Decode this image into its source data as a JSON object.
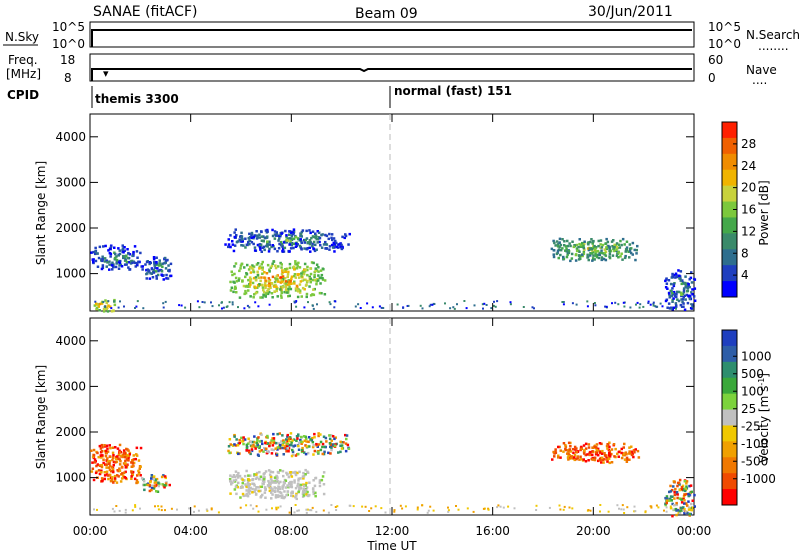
{
  "header": {
    "station": "SANAE (fitACF)",
    "beam": "Beam 09",
    "date": "30/Jun/2011"
  },
  "status_panels": {
    "nsky_label": "N.Sky",
    "nsearch_label": "N.Search",
    "nsearch_dots": "........",
    "counts_top": "10^5",
    "counts_bottom": "10^0",
    "freq_label_1": "Freq.",
    "freq_label_2": "[MHz]",
    "freq_top": "18",
    "freq_bottom": "8",
    "nave_label": "Nave",
    "nave_dots": "....",
    "nave_top": "60",
    "nave_bottom": "0",
    "cpid_label": "CPID",
    "cpid_1": "themis 3300",
    "cpid_2": "normal (fast) 151"
  },
  "chart_data": [
    {
      "type": "heatmap",
      "name": "power",
      "ylabel": "Slant Range [km]",
      "xlabel": "Time UT",
      "xticks": [
        "00:00",
        "04:00",
        "08:00",
        "12:00",
        "16:00",
        "20:00",
        "00:00"
      ],
      "yticks": [
        "1000",
        "2000",
        "3000",
        "4000"
      ],
      "xlim_hours": [
        0,
        24
      ],
      "ylim_km": [
        180,
        4500
      ],
      "colorbar": {
        "label": "Power [dB]",
        "ticks": [
          "4",
          "8",
          "12",
          "16",
          "20",
          "24",
          "28"
        ],
        "colors": [
          "#0000ff",
          "#1f3fbf",
          "#2e6e8e",
          "#3a8a6a",
          "#44a84a",
          "#7cc83c",
          "#c8d23c",
          "#f0b400",
          "#f08c00",
          "#f06000",
          "#ff2000"
        ]
      },
      "echo_regions": [
        {
          "t": [
            0.0,
            1.0
          ],
          "r": [
            180,
            450
          ],
          "intensity": "high"
        },
        {
          "t": [
            0.0,
            2.0
          ],
          "r": [
            1100,
            1650
          ],
          "intensity": "low"
        },
        {
          "t": [
            2.0,
            3.2
          ],
          "r": [
            900,
            1400
          ],
          "intensity": "low"
        },
        {
          "t": [
            5.5,
            9.3
          ],
          "r": [
            500,
            1300
          ],
          "intensity": "high"
        },
        {
          "t": [
            5.3,
            10.3
          ],
          "r": [
            1500,
            2000
          ],
          "intensity": "low"
        },
        {
          "t": [
            18.3,
            21.8
          ],
          "r": [
            1300,
            1800
          ],
          "intensity": "medium"
        },
        {
          "t": [
            22.8,
            24.0
          ],
          "r": [
            180,
            1100
          ],
          "intensity": "low"
        }
      ]
    },
    {
      "type": "heatmap",
      "name": "velocity",
      "ylabel": "Slant Range [km]",
      "xlabel": "Time UT",
      "xticks": [
        "00:00",
        "04:00",
        "08:00",
        "12:00",
        "16:00",
        "20:00",
        "00:00"
      ],
      "yticks": [
        "1000",
        "2000",
        "3000",
        "4000"
      ],
      "xlim_hours": [
        0,
        24
      ],
      "ylim_km": [
        180,
        4500
      ],
      "colorbar": {
        "label": "Velocity [m s-1]",
        "label_main": "Velocity [m s",
        "label_sup": "-1",
        "label_end": "]",
        "ticks": [
          "1000",
          "500",
          "100",
          "25",
          "-25",
          "-100",
          "-500",
          "-1000"
        ],
        "colors": [
          "#1f3fbf",
          "#2e5ea8",
          "#2e8e6e",
          "#3aa83a",
          "#7cd23c",
          "#c0c0c0",
          "#f0c800",
          "#f0a000",
          "#f07800",
          "#f04a00",
          "#ff0000"
        ]
      },
      "echo_regions": [
        {
          "t": [
            0.0,
            2.0
          ],
          "r": [
            900,
            1750
          ],
          "intensity": "negative"
        },
        {
          "t": [
            2.0,
            3.2
          ],
          "r": [
            700,
            1100
          ],
          "intensity": "mixed"
        },
        {
          "t": [
            5.5,
            9.3
          ],
          "r": [
            550,
            1200
          ],
          "intensity": "near-zero"
        },
        {
          "t": [
            5.3,
            10.3
          ],
          "r": [
            1500,
            2000
          ],
          "intensity": "mixed"
        },
        {
          "t": [
            18.3,
            21.8
          ],
          "r": [
            1350,
            1800
          ],
          "intensity": "negative"
        },
        {
          "t": [
            22.8,
            24.0
          ],
          "r": [
            180,
            1000
          ],
          "intensity": "mixed"
        }
      ]
    }
  ]
}
